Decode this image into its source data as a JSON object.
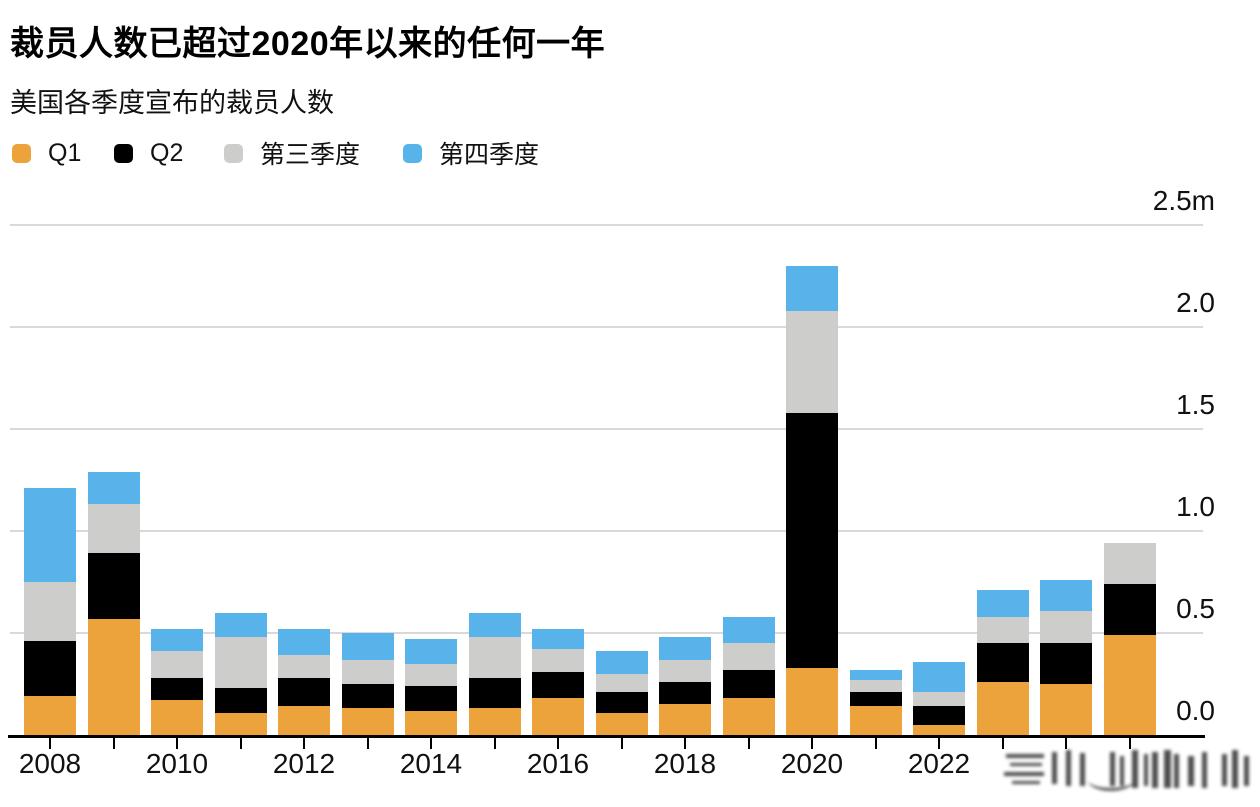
{
  "header": {
    "title": "裁员人数已超过2020年以来的任何一年",
    "subtitle": "美国各季度宣布的裁员人数"
  },
  "chart_data": {
    "type": "bar",
    "stacked": true,
    "title": "裁员人数已超过2020年以来的任何一年",
    "subtitle": "美国各季度宣布的裁员人数",
    "unit": "millions of announced job cuts",
    "categories": [
      "2008",
      "2009",
      "2010",
      "2011",
      "2012",
      "2013",
      "2014",
      "2015",
      "2016",
      "2017",
      "2018",
      "2019",
      "2020",
      "2021",
      "2022",
      "2023",
      "2024",
      "2025"
    ],
    "series": [
      {
        "name": "Q1",
        "color": "#EDA33C",
        "values": [
          0.19,
          0.57,
          0.17,
          0.11,
          0.14,
          0.13,
          0.12,
          0.13,
          0.18,
          0.11,
          0.15,
          0.18,
          0.33,
          0.14,
          0.05,
          0.26,
          0.25,
          0.49
        ]
      },
      {
        "name": "Q2",
        "color": "#000000",
        "values": [
          0.27,
          0.32,
          0.11,
          0.12,
          0.14,
          0.12,
          0.12,
          0.15,
          0.13,
          0.1,
          0.11,
          0.14,
          1.25,
          0.07,
          0.09,
          0.19,
          0.2,
          0.25
        ]
      },
      {
        "name": "第三季度",
        "color": "#CDCDCC",
        "values": [
          0.29,
          0.24,
          0.13,
          0.25,
          0.11,
          0.12,
          0.11,
          0.2,
          0.11,
          0.09,
          0.11,
          0.13,
          0.5,
          0.06,
          0.07,
          0.13,
          0.16,
          0.2
        ]
      },
      {
        "name": "第四季度",
        "color": "#57B3EA",
        "values": [
          0.46,
          0.16,
          0.11,
          0.12,
          0.13,
          0.13,
          0.12,
          0.12,
          0.1,
          0.11,
          0.11,
          0.13,
          0.22,
          0.05,
          0.15,
          0.13,
          0.15,
          0
        ]
      }
    ],
    "ylim": [
      0,
      2.5
    ],
    "y_ticks": [
      {
        "label": "0.0",
        "value": 0
      },
      {
        "label": "0.5",
        "value": 0.5
      },
      {
        "label": "1.0",
        "value": 1.0
      },
      {
        "label": "1.5",
        "value": 1.5
      },
      {
        "label": "2.0",
        "value": 2.0
      },
      {
        "label": "2.5m",
        "value": 2.5
      }
    ],
    "x_labeled_years": [
      "2008",
      "2010",
      "2012",
      "2014",
      "2016",
      "2018",
      "2020",
      "2022"
    ],
    "grid": true,
    "legend_position": "top-left"
  }
}
